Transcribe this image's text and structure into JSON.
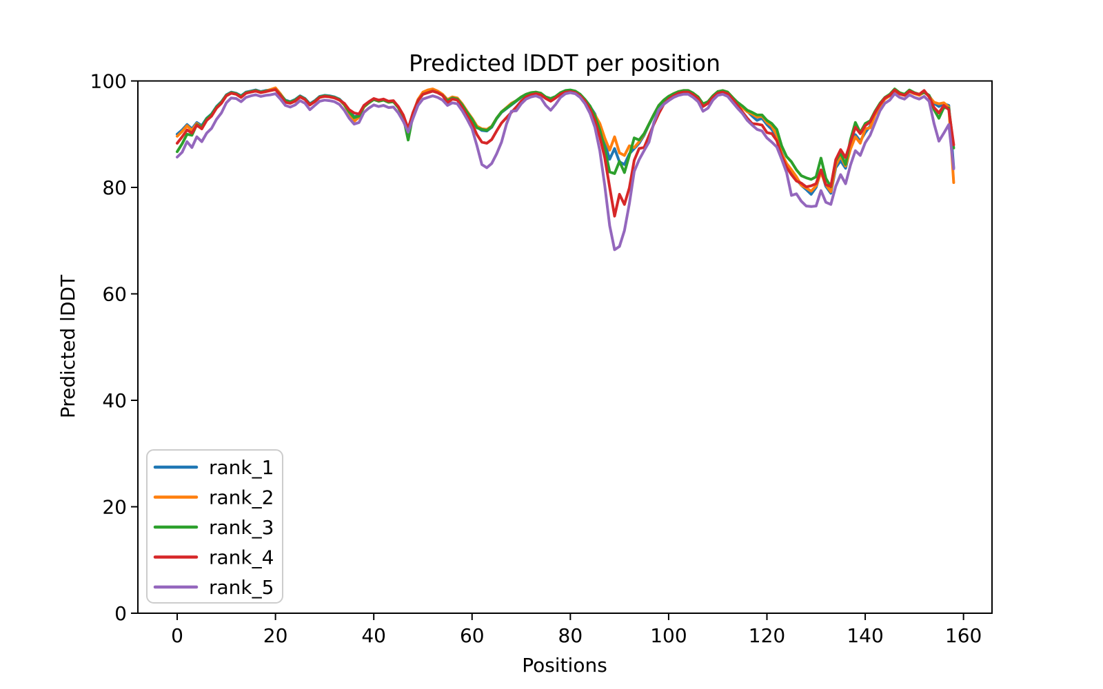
{
  "figure": {
    "title": "Predicted lDDT per position"
  },
  "axes": {
    "x_label": "Positions",
    "y_label": "Predicted lDDT",
    "x_ticks": [
      0,
      20,
      40,
      60,
      80,
      100,
      120,
      140,
      160
    ],
    "y_ticks": [
      0,
      20,
      40,
      60,
      80,
      100
    ],
    "x_range": [
      -8.0,
      165.8
    ],
    "y_range": [
      0,
      100
    ]
  },
  "legend": {
    "entries": [
      {
        "label": "rank_1",
        "color": "#1f77b4"
      },
      {
        "label": "rank_2",
        "color": "#ff7f0e"
      },
      {
        "label": "rank_3",
        "color": "#2ca02c"
      },
      {
        "label": "rank_4",
        "color": "#d62728"
      },
      {
        "label": "rank_5",
        "color": "#9467bd"
      }
    ]
  },
  "chart_data": {
    "type": "line",
    "title": "Predicted lDDT per position",
    "xlabel": "Positions",
    "ylabel": "Predicted lDDT",
    "xlim": [
      -8.0,
      165.8
    ],
    "ylim": [
      0,
      100
    ],
    "grid": false,
    "legend_position": "lower left",
    "x_start": 0,
    "x_step": 1,
    "series": [
      {
        "name": "rank_1",
        "color": "#1f77b4",
        "values": [
          90.0,
          90.8,
          91.8,
          91.0,
          92.2,
          91.6,
          93.0,
          93.8,
          95.2,
          96.1,
          97.4,
          97.9,
          97.7,
          97.2,
          97.9,
          98.1,
          98.3,
          98.0,
          98.2,
          98.3,
          98.5,
          97.5,
          96.4,
          96.1,
          96.5,
          97.2,
          96.7,
          95.7,
          96.3,
          97.1,
          97.3,
          97.2,
          97.0,
          96.6,
          95.7,
          94.3,
          93.3,
          93.5,
          95.3,
          96.0,
          96.6,
          96.3,
          96.5,
          96.1,
          96.2,
          95.1,
          93.5,
          91.1,
          94.0,
          96.4,
          97.6,
          97.9,
          98.2,
          97.9,
          97.4,
          96.4,
          96.9,
          96.7,
          95.6,
          94.2,
          92.9,
          91.3,
          90.7,
          90.6,
          91.3,
          92.9,
          94.1,
          94.8,
          95.5,
          96.2,
          96.9,
          97.4,
          97.7,
          97.8,
          97.6,
          96.9,
          96.6,
          97.0,
          97.7,
          98.1,
          98.2,
          98.0,
          97.4,
          96.4,
          95.2,
          93.8,
          91.3,
          88.3,
          85.3,
          87.3,
          84.8,
          84.3,
          86.3,
          87.3,
          88.3,
          89.8,
          91.8,
          93.6,
          95.3,
          96.3,
          97.0,
          97.5,
          97.9,
          98.1,
          98.1,
          97.6,
          96.9,
          95.6,
          96.0,
          97.1,
          97.9,
          98.1,
          97.8,
          96.8,
          95.8,
          95.1,
          94.3,
          93.4,
          92.6,
          93.0,
          91.8,
          90.9,
          89.4,
          86.5,
          84.3,
          82.8,
          81.5,
          80.4,
          79.6,
          78.7,
          80.0,
          83.1,
          80.2,
          78.9,
          83.7,
          85.0,
          83.6,
          87.5,
          89.9,
          88.7,
          90.3,
          91.5,
          94.0,
          95.5,
          96.8,
          97.4,
          98.4,
          97.7,
          97.4,
          98.2,
          97.7,
          97.4,
          97.8,
          97.2,
          95.8,
          95.2,
          95.7,
          95.4,
          83.7
        ]
      },
      {
        "name": "rank_2",
        "color": "#ff7f0e",
        "values": [
          89.6,
          90.5,
          91.6,
          90.7,
          92.0,
          91.3,
          92.8,
          93.6,
          95.0,
          96.0,
          97.3,
          97.8,
          97.6,
          97.0,
          97.8,
          98.0,
          98.2,
          97.9,
          98.1,
          98.4,
          98.7,
          97.6,
          96.3,
          96.0,
          96.4,
          97.1,
          96.6,
          95.5,
          96.2,
          97.0,
          97.2,
          97.1,
          96.9,
          96.5,
          95.5,
          94.0,
          92.4,
          93.2,
          95.1,
          95.9,
          96.5,
          96.2,
          96.4,
          96.0,
          96.1,
          95.0,
          93.3,
          91.0,
          93.9,
          96.5,
          97.9,
          98.3,
          98.5,
          98.1,
          97.5,
          96.5,
          97.0,
          96.8,
          95.7,
          94.3,
          93.0,
          91.5,
          91.0,
          90.9,
          91.5,
          93.0,
          94.2,
          95.0,
          95.8,
          96.3,
          97.0,
          97.5,
          97.8,
          97.9,
          97.7,
          96.8,
          96.5,
          96.9,
          97.6,
          98.0,
          98.1,
          97.9,
          97.3,
          96.3,
          95.0,
          93.6,
          92.0,
          89.3,
          87.0,
          89.5,
          86.5,
          86.0,
          87.8,
          87.5,
          88.6,
          90.0,
          91.9,
          93.7,
          95.4,
          96.4,
          97.1,
          97.6,
          98.0,
          98.2,
          98.2,
          97.7,
          97.0,
          95.6,
          96.1,
          97.2,
          98.0,
          98.2,
          97.9,
          96.9,
          95.9,
          95.0,
          94.2,
          93.8,
          93.2,
          93.4,
          92.2,
          91.5,
          89.8,
          86.3,
          84.5,
          83.3,
          82.0,
          80.4,
          79.9,
          79.3,
          80.3,
          82.8,
          80.5,
          79.2,
          84.1,
          85.9,
          84.0,
          87.2,
          89.5,
          88.3,
          91.0,
          91.2,
          93.6,
          95.2,
          96.6,
          97.2,
          98.2,
          97.5,
          97.3,
          98.0,
          97.6,
          97.3,
          97.9,
          97.1,
          96.0,
          95.7,
          95.9,
          95.1,
          80.9
        ]
      },
      {
        "name": "rank_3",
        "color": "#2ca02c",
        "values": [
          86.7,
          88.2,
          90.0,
          89.8,
          91.8,
          91.3,
          92.9,
          93.7,
          95.1,
          96.0,
          97.3,
          97.8,
          97.6,
          97.1,
          97.8,
          98.0,
          98.2,
          97.9,
          98.1,
          98.2,
          98.4,
          97.4,
          96.3,
          96.0,
          96.4,
          97.1,
          96.6,
          95.6,
          96.2,
          97.0,
          97.2,
          97.1,
          96.9,
          96.5,
          95.6,
          94.2,
          93.1,
          93.4,
          95.2,
          95.9,
          96.5,
          96.2,
          96.4,
          96.0,
          96.1,
          95.0,
          93.2,
          88.9,
          93.7,
          96.3,
          97.5,
          97.8,
          98.1,
          97.8,
          97.3,
          96.3,
          96.8,
          96.6,
          95.5,
          94.1,
          92.8,
          91.2,
          90.9,
          90.7,
          91.4,
          93.0,
          94.2,
          94.9,
          95.6,
          96.3,
          97.0,
          97.5,
          97.8,
          97.9,
          97.7,
          97.0,
          96.7,
          97.1,
          97.8,
          98.2,
          98.3,
          98.1,
          97.5,
          96.5,
          95.3,
          93.4,
          90.8,
          87.3,
          82.9,
          82.6,
          84.9,
          82.8,
          86.0,
          89.3,
          88.9,
          90.1,
          91.9,
          93.7,
          95.4,
          96.4,
          97.1,
          97.6,
          98.0,
          98.2,
          98.2,
          97.7,
          97.0,
          95.7,
          96.1,
          97.2,
          98.0,
          98.2,
          97.9,
          96.9,
          96.0,
          95.3,
          94.5,
          94.1,
          93.6,
          93.6,
          92.6,
          92.0,
          90.9,
          87.8,
          85.8,
          84.8,
          83.3,
          82.2,
          81.8,
          81.5,
          82.0,
          85.5,
          81.7,
          80.1,
          85.0,
          86.5,
          84.3,
          89.0,
          92.2,
          90.3,
          92.0,
          92.5,
          94.3,
          95.8,
          96.9,
          97.5,
          98.5,
          97.8,
          97.5,
          98.3,
          97.8,
          97.5,
          97.9,
          97.3,
          94.6,
          93.0,
          95.0,
          94.9,
          87.4
        ]
      },
      {
        "name": "rank_4",
        "color": "#d62728",
        "values": [
          88.3,
          89.5,
          90.8,
          90.2,
          91.7,
          91.0,
          92.6,
          93.4,
          94.9,
          95.8,
          97.2,
          97.7,
          97.5,
          96.9,
          97.7,
          97.9,
          98.1,
          97.8,
          98.0,
          98.2,
          98.4,
          97.3,
          96.0,
          95.8,
          96.2,
          97.0,
          96.5,
          95.5,
          96.1,
          96.9,
          97.1,
          97.0,
          96.8,
          96.4,
          95.8,
          94.6,
          94.0,
          93.8,
          95.4,
          96.1,
          96.7,
          96.4,
          96.6,
          96.2,
          96.3,
          95.2,
          93.6,
          91.0,
          94.1,
          96.3,
          97.5,
          97.8,
          98.1,
          97.8,
          97.3,
          95.9,
          96.6,
          96.4,
          95.0,
          93.5,
          91.9,
          89.9,
          88.5,
          88.3,
          89.0,
          90.6,
          92.1,
          93.1,
          94.1,
          95.1,
          96.2,
          97.0,
          97.4,
          97.6,
          97.4,
          96.7,
          96.2,
          96.8,
          97.5,
          97.9,
          98.0,
          97.8,
          97.2,
          96.2,
          94.7,
          92.5,
          89.5,
          85.6,
          80.0,
          74.6,
          78.7,
          76.8,
          79.9,
          85.1,
          87.3,
          87.5,
          89.7,
          91.9,
          93.9,
          95.6,
          96.6,
          97.2,
          97.7,
          97.9,
          97.9,
          97.4,
          96.7,
          95.2,
          95.8,
          96.9,
          97.7,
          97.9,
          97.6,
          96.6,
          95.5,
          94.2,
          93.0,
          92.0,
          91.9,
          91.7,
          90.3,
          90.1,
          88.8,
          85.9,
          83.8,
          82.4,
          81.2,
          80.8,
          80.1,
          80.3,
          80.7,
          83.3,
          80.5,
          80.2,
          85.2,
          87.1,
          85.6,
          88.5,
          91.3,
          90.1,
          91.6,
          92.3,
          94.1,
          95.6,
          96.8,
          97.3,
          98.3,
          97.6,
          97.3,
          98.1,
          97.7,
          97.5,
          98.2,
          97.0,
          95.0,
          94.0,
          95.4,
          94.6,
          88.0
        ]
      },
      {
        "name": "rank_5",
        "color": "#9467bd",
        "values": [
          85.7,
          86.6,
          88.6,
          87.5,
          89.5,
          88.6,
          90.2,
          91.1,
          92.8,
          94.0,
          95.9,
          96.8,
          96.7,
          96.1,
          96.9,
          97.2,
          97.4,
          97.1,
          97.3,
          97.4,
          97.6,
          96.6,
          95.4,
          95.1,
          95.5,
          96.3,
          95.8,
          94.6,
          95.4,
          96.2,
          96.4,
          96.3,
          96.1,
          95.6,
          94.5,
          93.0,
          91.9,
          92.2,
          94.1,
          94.9,
          95.5,
          95.2,
          95.4,
          95.0,
          95.1,
          94.0,
          92.4,
          90.4,
          93.0,
          95.4,
          96.6,
          96.9,
          97.2,
          96.9,
          96.4,
          95.4,
          95.9,
          95.7,
          94.4,
          92.8,
          91.0,
          87.8,
          84.3,
          83.7,
          84.5,
          86.3,
          88.5,
          91.9,
          94.3,
          94.4,
          95.7,
          96.6,
          97.0,
          97.2,
          96.8,
          95.4,
          94.5,
          95.6,
          96.9,
          97.6,
          97.8,
          97.6,
          96.9,
          95.7,
          93.9,
          91.3,
          86.9,
          80.4,
          72.8,
          68.3,
          68.9,
          71.9,
          76.9,
          83.0,
          85.2,
          86.9,
          88.5,
          92.2,
          94.6,
          95.6,
          96.3,
          96.9,
          97.3,
          97.5,
          97.5,
          96.9,
          96.1,
          94.3,
          94.9,
          96.4,
          97.3,
          97.5,
          97.1,
          96.0,
          94.9,
          93.9,
          92.6,
          91.7,
          90.9,
          90.6,
          89.3,
          88.5,
          87.6,
          85.3,
          82.8,
          78.5,
          78.8,
          77.4,
          76.5,
          76.4,
          76.5,
          79.4,
          77.2,
          76.8,
          80.2,
          82.4,
          80.7,
          84.2,
          86.9,
          86.0,
          88.4,
          89.8,
          92.1,
          94.4,
          95.8,
          96.4,
          97.6,
          96.9,
          96.6,
          97.4,
          96.9,
          96.6,
          97.1,
          96.2,
          92.0,
          88.7,
          90.2,
          91.8,
          83.5
        ]
      }
    ]
  }
}
